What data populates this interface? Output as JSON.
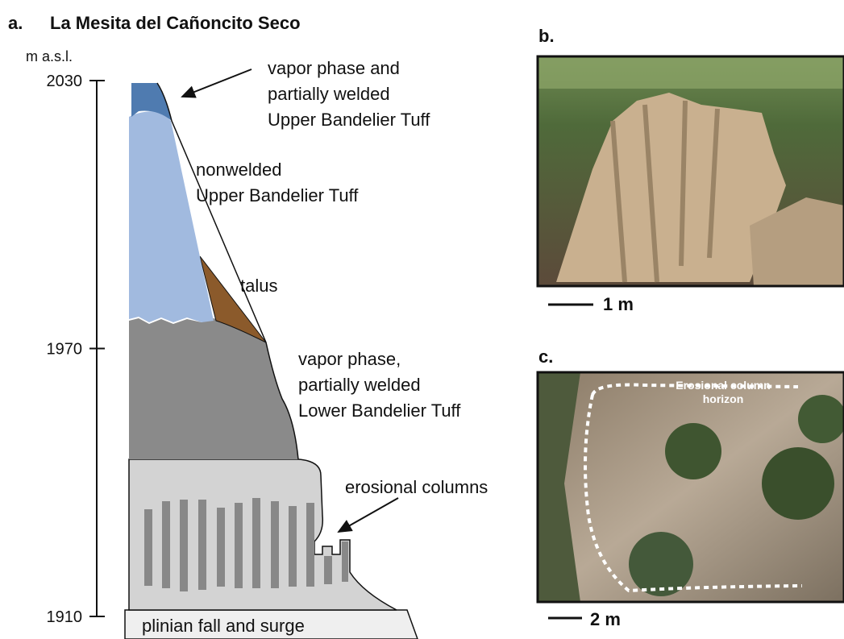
{
  "panel_a": {
    "label": "a.",
    "title": "La Mesita del Cañoncito Seco",
    "axis_unit": "m a.s.l.",
    "ticks": [
      2030,
      1970,
      1910
    ],
    "annotations": [
      {
        "lines": [
          "vapor phase and",
          "partially welded",
          "Upper Bandelier Tuff"
        ]
      },
      {
        "lines": [
          "nonwelded",
          "Upper Bandelier Tuff"
        ]
      },
      {
        "lines": [
          "talus"
        ]
      },
      {
        "lines": [
          "vapor phase,",
          "partially welded",
          "Lower Bandelier Tuff"
        ]
      },
      {
        "lines": [
          "erosional columns"
        ]
      },
      {
        "lines": [
          "plinian fall and surge"
        ]
      }
    ]
  },
  "panel_b": {
    "label": "b.",
    "scale_bar": "1 m"
  },
  "panel_c": {
    "label": "c.",
    "scale_bar": "2 m",
    "photo_text": [
      "Erosional column",
      "horizon"
    ]
  }
}
